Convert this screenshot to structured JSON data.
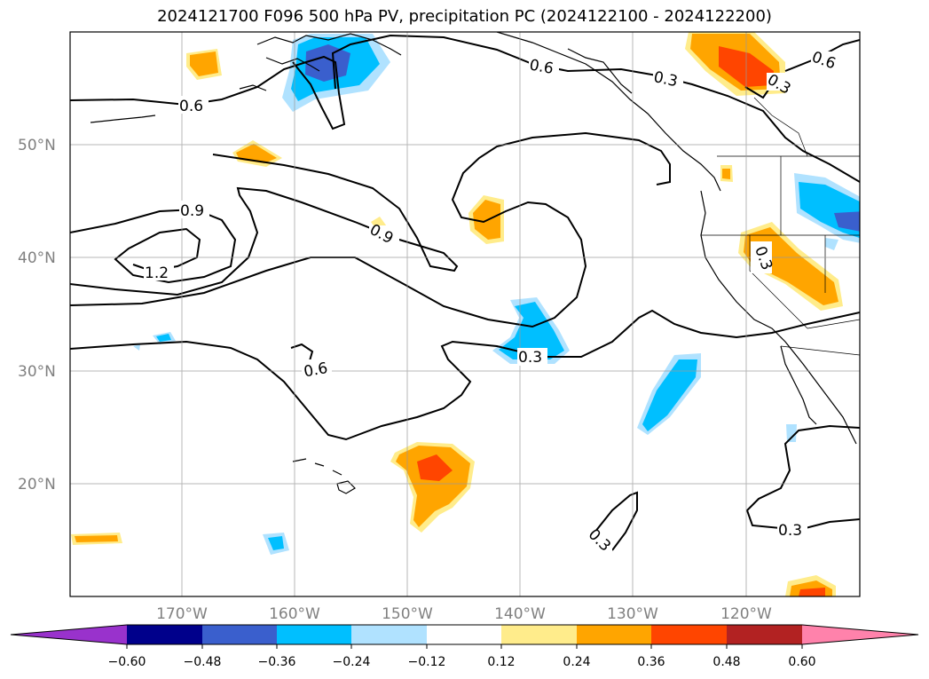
{
  "title": "2024121700 F096 500 hPa PV, precipitation PC (2024122100 - 2024122200)",
  "lat_labels": [
    "50°N",
    "40°N",
    "30°N",
    "20°N"
  ],
  "lon_labels": [
    "170°W",
    "160°W",
    "150°W",
    "140°W",
    "130°W",
    "120°W"
  ],
  "contour_labels": [
    "0.6",
    "0.3",
    "0.6",
    "0.6",
    "0.3",
    "0.9",
    "0.9",
    "1.2",
    "0.3",
    "0.3",
    "0.6",
    "0.3",
    "0.3"
  ],
  "colorbar": {
    "colors": [
      "#9932cc",
      "#00008b",
      "#3a5fcd",
      "#00bfff",
      "#b0e2ff",
      "#ffffff",
      "#ffec8b",
      "#ffa500",
      "#ff4500",
      "#b22222",
      "#ff82ab"
    ],
    "tick_labels": [
      "−0.60",
      "−0.48",
      "−0.36",
      "−0.24",
      "−0.12",
      "0.12",
      "0.24",
      "0.36",
      "0.48",
      "0.60"
    ]
  }
}
